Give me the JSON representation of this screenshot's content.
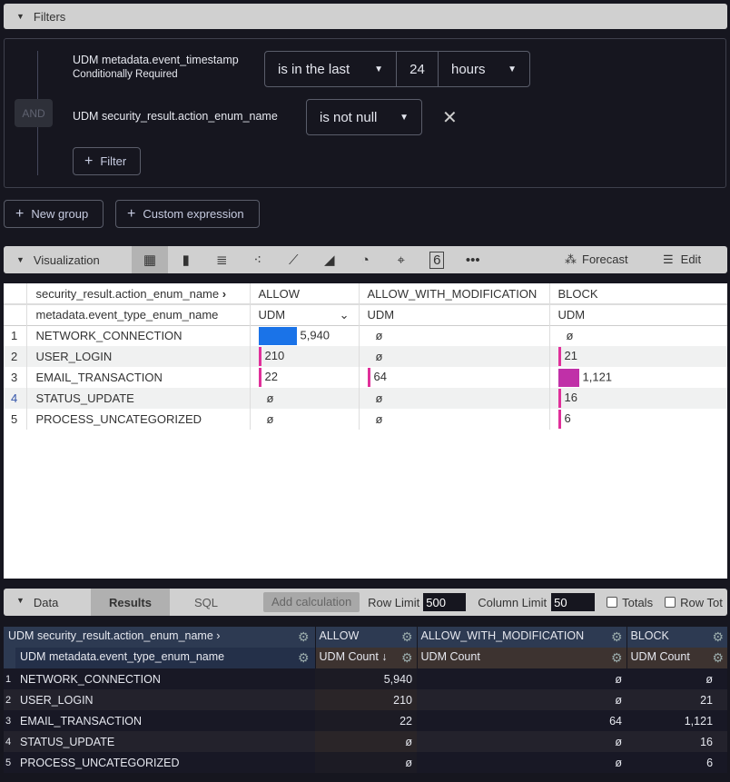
{
  "filters": {
    "title": "Filters",
    "and_label": "AND",
    "rows": [
      {
        "field": "UDM metadata.event_timestamp",
        "note": "Conditionally Required",
        "operator": "is in the last",
        "value": "24",
        "unit": "hours"
      },
      {
        "field": "UDM security_result.action_enum_name",
        "operator": "is not null"
      }
    ],
    "add_filter": "Filter",
    "new_group": "New group",
    "custom_expression": "Custom expression"
  },
  "visualization": {
    "title": "Visualization",
    "icons": [
      "table-icon",
      "column-chart-icon",
      "bar-chart-icon",
      "scatter-icon",
      "line-chart-icon",
      "area-chart-icon",
      "pie-chart-icon",
      "map-pin-icon",
      "single-value-icon",
      "more-icon"
    ],
    "single_value_glyph": "6",
    "forecast": "Forecast",
    "edit": "Edit",
    "pivot_header": "security_result.action_enum_name",
    "row_header": "metadata.event_type_enum_name",
    "columns": [
      {
        "name": "ALLOW",
        "measure": "UDM"
      },
      {
        "name": "ALLOW_WITH_MODIFICATION",
        "measure": "UDM"
      },
      {
        "name": "BLOCK",
        "measure": "UDM"
      }
    ],
    "rows": [
      {
        "i": "1",
        "name": "NETWORK_CONNECTION",
        "vals": [
          "5,940",
          "ø",
          "ø"
        ]
      },
      {
        "i": "2",
        "name": "USER_LOGIN",
        "vals": [
          "210",
          "ø",
          "21"
        ]
      },
      {
        "i": "3",
        "name": "EMAIL_TRANSACTION",
        "vals": [
          "22",
          "64",
          "1,121"
        ]
      },
      {
        "i": "4",
        "name": "STATUS_UPDATE",
        "vals": [
          "ø",
          "ø",
          "16"
        ]
      },
      {
        "i": "5",
        "name": "PROCESS_UNCATEGORIZED",
        "vals": [
          "ø",
          "ø",
          "6"
        ]
      }
    ],
    "colors": {
      "high": "#1a73e8",
      "mid": "#c030a8",
      "low": "#e0309a"
    }
  },
  "data": {
    "title": "Data",
    "tabs": [
      "Results",
      "SQL"
    ],
    "add_calculation": "Add calculation",
    "row_limit_label": "Row Limit",
    "row_limit": "500",
    "column_limit_label": "Column Limit",
    "column_limit": "50",
    "totals": "Totals",
    "row_totals": "Row Tot",
    "pivot_header": "UDM security_result.action_enum_name",
    "row_header": "UDM metadata.event_type_enum_name",
    "columns": [
      {
        "name": "ALLOW",
        "measure": "UDM Count ↓"
      },
      {
        "name": "ALLOW_WITH_MODIFICATION",
        "measure": "UDM Count"
      },
      {
        "name": "BLOCK",
        "measure": "UDM Count"
      }
    ]
  }
}
